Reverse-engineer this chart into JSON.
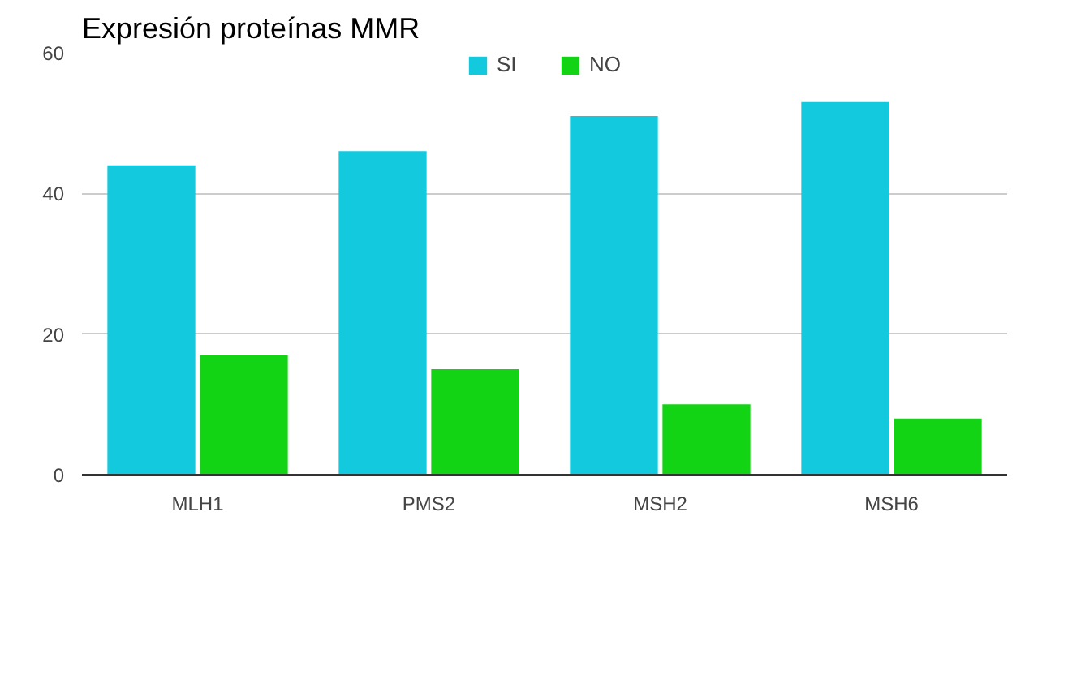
{
  "chart_data": {
    "type": "bar",
    "title": "Expresión proteínas MMR",
    "categories": [
      "MLH1",
      "PMS2",
      "MSH2",
      "MSH6"
    ],
    "series": [
      {
        "name": "SI",
        "color": "#12c9de",
        "values": [
          44,
          46,
          51,
          53
        ]
      },
      {
        "name": "NO",
        "color": "#13d315",
        "values": [
          17,
          15,
          10,
          8
        ]
      }
    ],
    "ylim": [
      0,
      60
    ],
    "yticks": [
      0,
      20,
      40,
      60
    ],
    "grid": "y",
    "legend": "top"
  }
}
